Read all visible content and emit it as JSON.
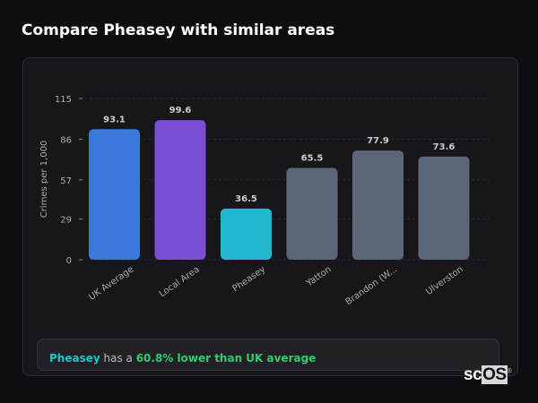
{
  "title": "Compare Pheasey with similar areas",
  "chart_data": {
    "type": "bar",
    "categories": [
      "UK Average",
      "Local Area",
      "Pheasey",
      "Yatton",
      "Brandon (W...",
      "Ulverston"
    ],
    "values": [
      93.1,
      99.6,
      36.5,
      65.5,
      77.9,
      73.6
    ],
    "colors": [
      "#3a78dc",
      "#7b4fd4",
      "#22b8d0",
      "#5b6679",
      "#5b6679",
      "#5b6679"
    ],
    "ylabel": "Crimes per 1,000",
    "yticks": [
      0,
      29,
      57,
      86,
      115
    ],
    "ylim": [
      0,
      115
    ],
    "grid": true
  },
  "note": {
    "area": "Pheasey",
    "text1": " has a ",
    "highlight": "60.8% lower than UK average"
  },
  "logo": "scOS"
}
